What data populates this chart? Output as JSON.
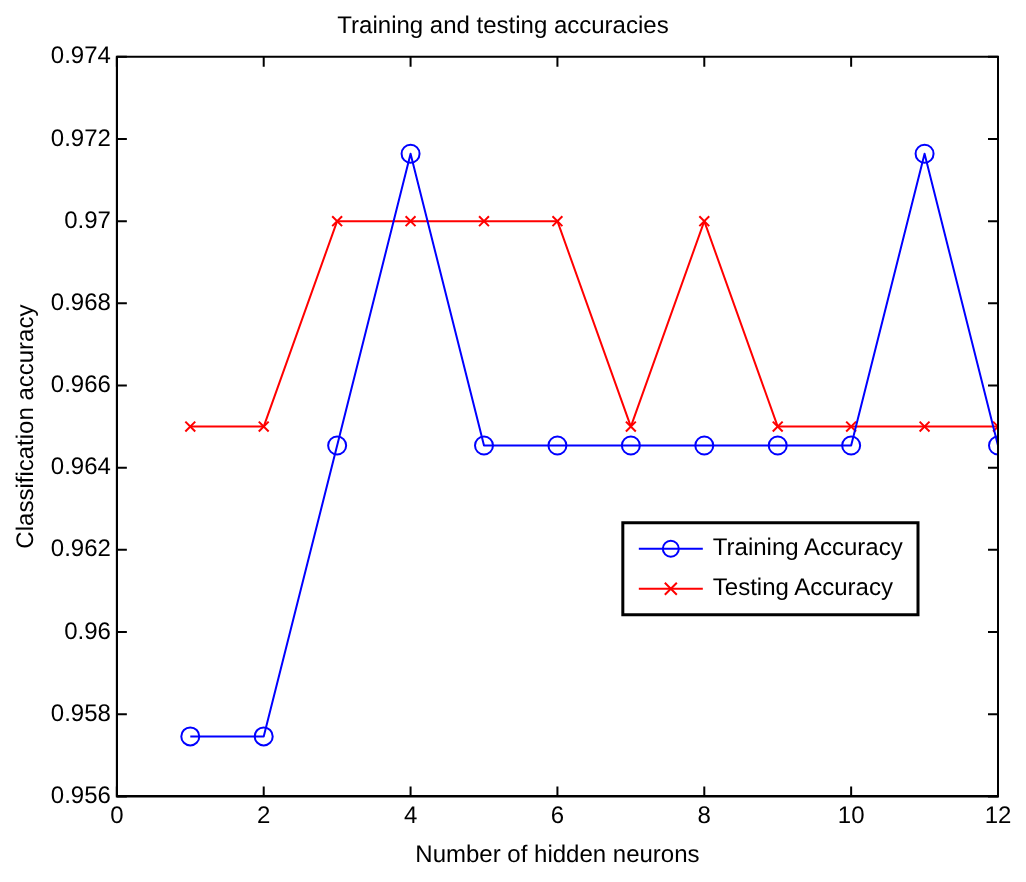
{
  "chart_data": {
    "type": "line",
    "title": "Training and testing accuracies",
    "xlabel": "Number of hidden neurons",
    "ylabel": "Classification accuracy",
    "x": [
      1,
      2,
      3,
      4,
      5,
      6,
      7,
      8,
      9,
      10,
      11,
      12
    ],
    "series": [
      {
        "name": "Training Accuracy",
        "color": "#0000ff",
        "marker": "circle",
        "values": [
          0.95746,
          0.95746,
          0.96454,
          0.97164,
          0.96454,
          0.96454,
          0.96454,
          0.96454,
          0.96454,
          0.96454,
          0.97164,
          0.96454
        ]
      },
      {
        "name": "Testing Accuracy",
        "color": "#ff0000",
        "marker": "cross",
        "values": [
          0.965,
          0.965,
          0.97,
          0.97,
          0.97,
          0.97,
          0.965,
          0.97,
          0.965,
          0.965,
          0.965,
          0.965
        ]
      }
    ],
    "xlim": [
      0,
      12
    ],
    "xticks": [
      0,
      2,
      4,
      6,
      8,
      10,
      12
    ],
    "ylim": [
      0.956,
      0.974
    ],
    "yticks": [
      0.956,
      0.958,
      0.96,
      0.962,
      0.964,
      0.966,
      0.968,
      0.97,
      0.972,
      0.974
    ],
    "grid": false,
    "legend": "right",
    "line_style": "solid"
  }
}
